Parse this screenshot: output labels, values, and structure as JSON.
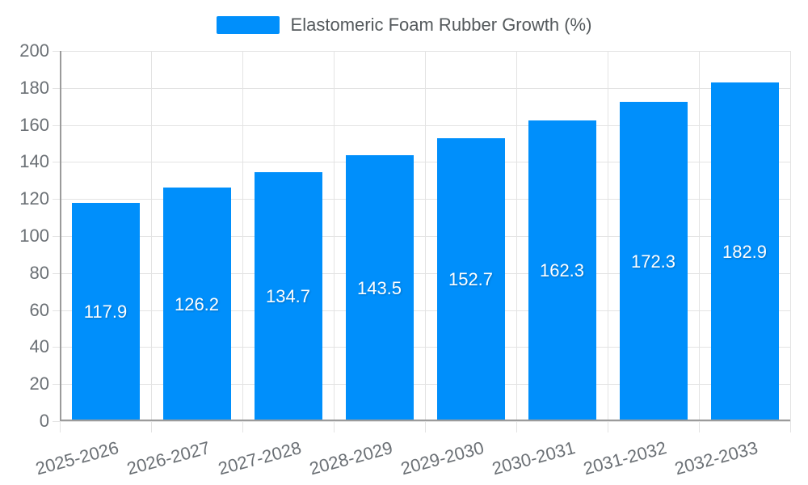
{
  "chart_data": {
    "type": "bar",
    "title": "Elastomeric Foam Rubber Growth (%)",
    "categories": [
      "2025-2026",
      "2026-2027",
      "2027-2028",
      "2028-2029",
      "2029-2030",
      "2030-2031",
      "2031-2032",
      "2032-2033"
    ],
    "values": [
      117.9,
      126.2,
      134.7,
      143.5,
      152.7,
      162.3,
      172.3,
      182.9
    ],
    "xlabel": "",
    "ylabel": "",
    "ylim": [
      0,
      200
    ],
    "ytick_step": 20,
    "yticks": [
      0,
      20,
      40,
      60,
      80,
      100,
      120,
      140,
      160,
      180,
      200
    ],
    "grid": "both",
    "legend_position": "top-center",
    "data_labels": "inside-center, white",
    "colors": {
      "bar": "#008FFB",
      "bar_label_text": "#ffffff",
      "gridline": "#e3e3e3",
      "axis_line": "#9b9b9b",
      "axis_tick_label": "#6b7075",
      "legend_text": "#54595c",
      "background": "#ffffff"
    }
  }
}
